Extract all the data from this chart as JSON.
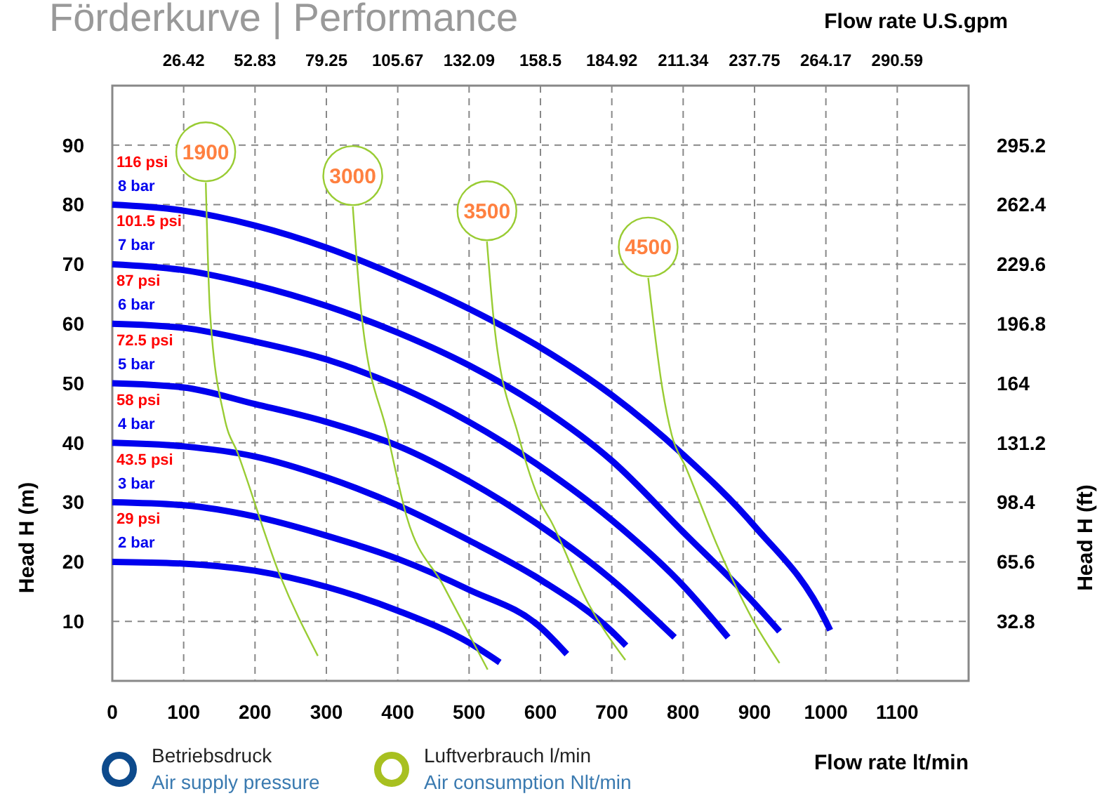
{
  "chart_data": {
    "type": "line",
    "title": "Förderkurve | Performance",
    "xlabel": "Flow rate  lt/min",
    "x2label": "Flow rate U.S.gpm",
    "ylabel": "Head H (m)",
    "y2label": "Head H (ft)",
    "xlim": [
      0,
      1200
    ],
    "xticks": [
      0,
      100,
      200,
      300,
      400,
      500,
      600,
      700,
      800,
      900,
      1000,
      1100
    ],
    "x2lim": [
      0,
      317.01
    ],
    "x2ticks": [
      26.42,
      52.83,
      79.25,
      105.67,
      132.09,
      158.5,
      184.92,
      211.34,
      237.75,
      264.17,
      290.59
    ],
    "ylim": [
      0,
      100
    ],
    "yticks": [
      10,
      20,
      30,
      40,
      50,
      60,
      70,
      80,
      90
    ],
    "y2lim": [
      0,
      328
    ],
    "y2ticks": [
      32.8,
      65.6,
      98.4,
      131.2,
      164,
      196.8,
      229.6,
      262.4,
      295.2
    ],
    "grid": true,
    "marker": "none",
    "line_style": "solid",
    "series": [
      {
        "name": "8 bar",
        "color": "#0000ee",
        "x": [
          0,
          100,
          200,
          300,
          400,
          500,
          600,
          700,
          800,
          900,
          1000,
          1006
        ],
        "values": [
          80,
          79,
          76.5,
          72.8,
          68,
          62.5,
          56,
          48,
          38,
          26,
          10,
          8.5
        ]
      },
      {
        "name": "7 bar",
        "color": "#0000ee",
        "x": [
          0,
          100,
          200,
          300,
          400,
          500,
          600,
          700,
          800,
          900,
          935
        ],
        "values": [
          70,
          69,
          66.5,
          63,
          58.5,
          53,
          46,
          37,
          25,
          13,
          8.3
        ]
      },
      {
        "name": "6 bar",
        "color": "#0000ee",
        "x": [
          0,
          100,
          200,
          300,
          400,
          500,
          600,
          700,
          800,
          863
        ],
        "values": [
          60,
          59.3,
          57,
          54,
          49.5,
          43.5,
          36,
          27,
          16,
          7.3
        ]
      },
      {
        "name": "5 bar",
        "color": "#0000ee",
        "x": [
          0,
          100,
          200,
          300,
          400,
          500,
          600,
          700,
          788
        ],
        "values": [
          50,
          49.3,
          46.5,
          43.5,
          39.5,
          33.5,
          26,
          17,
          7.3
        ]
      },
      {
        "name": "4 bar",
        "color": "#0000ee",
        "x": [
          0,
          100,
          200,
          300,
          400,
          500,
          600,
          700,
          720
        ],
        "values": [
          40,
          39.4,
          37.7,
          34.2,
          29.5,
          23.6,
          17,
          8.3,
          5.9
        ]
      },
      {
        "name": "3 bar",
        "color": "#0000ee",
        "x": [
          0,
          100,
          200,
          300,
          400,
          500,
          600,
          637
        ],
        "values": [
          30,
          29.5,
          27.6,
          24.4,
          20.5,
          15.3,
          9,
          4.5
        ]
      },
      {
        "name": "2 bar",
        "color": "#0000ee",
        "x": [
          0,
          100,
          200,
          300,
          400,
          500,
          543
        ],
        "values": [
          20,
          19.7,
          18.5,
          15.8,
          11.8,
          6.4,
          3.1
        ]
      },
      {
        "name": "1900",
        "color": "#99cc33",
        "x": [
          131,
          137,
          157,
          176,
          235,
          288
        ],
        "values": [
          83.7,
          61.8,
          44.3,
          38.2,
          17.7,
          4.2
        ]
      },
      {
        "name": "3000",
        "color": "#99cc33",
        "x": [
          337,
          349,
          386,
          412,
          464,
          526
        ],
        "values": [
          79.7,
          61.8,
          41.3,
          27.8,
          16,
          1.9
        ]
      },
      {
        "name": "3500",
        "color": "#99cc33",
        "x": [
          525,
          535,
          569,
          602,
          614,
          667,
          719
        ],
        "values": [
          73.8,
          60.1,
          41.3,
          29.5,
          27,
          13,
          3.5
        ]
      },
      {
        "name": "4500",
        "color": "#99cc33",
        "x": [
          751,
          771,
          784,
          804,
          849,
          896,
          935
        ],
        "values": [
          67.7,
          49,
          41.3,
          35.8,
          22.4,
          10.6,
          3
        ]
      }
    ],
    "annotations": [
      "116 psi",
      "101.5 psi",
      "87 psi",
      "72.5 psi",
      "58 psi",
      "43.5 psi",
      "29 psi",
      "Betriebsdruck",
      "Air supply pressure",
      "Luftverbrauch l/min",
      "Air consumption Nlt/min"
    ]
  }
}
